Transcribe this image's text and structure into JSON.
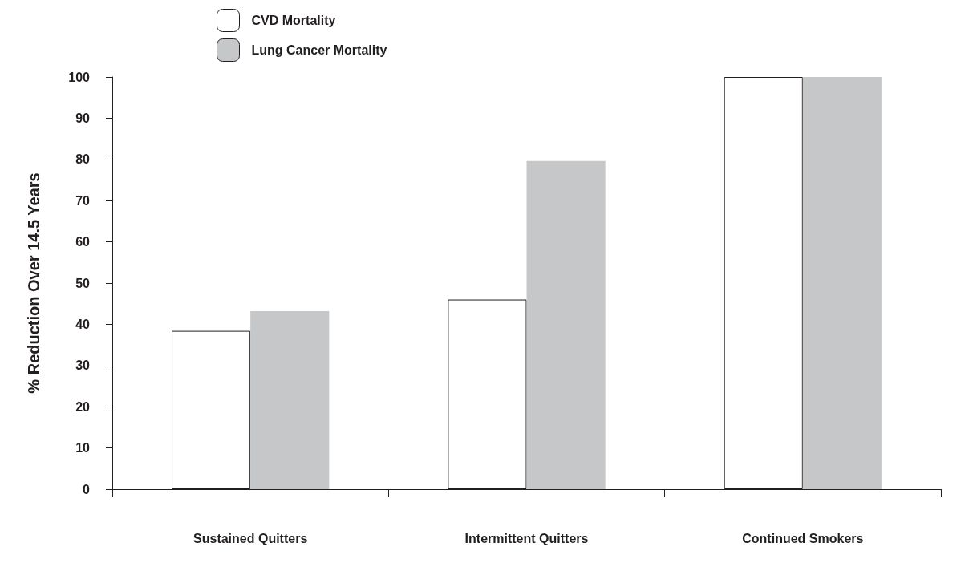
{
  "chart_data": {
    "type": "bar",
    "ylabel": "% Reduction Over 14.5 Years",
    "categories": [
      "Sustained Quitters",
      "Intermittent Quitters",
      "Continued Smokers"
    ],
    "series": [
      {
        "name": "CVD Mortality",
        "color": "#ffffff",
        "values": [
          38.4,
          46.0,
          100
        ]
      },
      {
        "name": "Lung Cancer Mortality",
        "color": "#c6c7c9",
        "values": [
          43.2,
          79.6,
          100
        ]
      }
    ],
    "ylim": [
      0,
      100
    ],
    "yticks": [
      0,
      10,
      20,
      30,
      40,
      50,
      60,
      70,
      80,
      90,
      100
    ],
    "grid": false,
    "legend": "top left"
  }
}
